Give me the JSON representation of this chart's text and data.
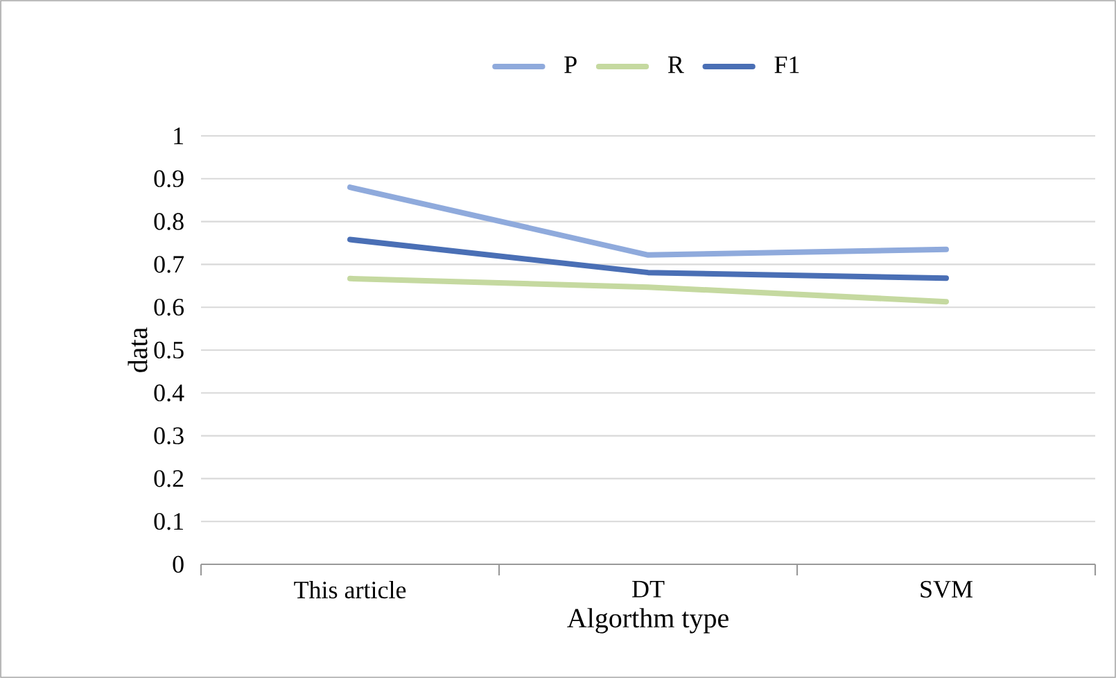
{
  "chart_data": {
    "type": "line",
    "xlabel": "Algorthm type",
    "ylabel": "data",
    "categories": [
      "This article",
      "DT",
      "SVM"
    ],
    "series": [
      {
        "name": "P",
        "color": "#8faadc",
        "values": [
          0.88,
          0.722,
          0.735
        ]
      },
      {
        "name": "R",
        "color": "#c5d9a0",
        "values": [
          0.667,
          0.647,
          0.613
        ]
      },
      {
        "name": "F1",
        "color": "#4a6fb5",
        "values": [
          0.758,
          0.681,
          0.668
        ]
      }
    ],
    "ylim": [
      0,
      1
    ],
    "yticks": [
      0,
      0.1,
      0.2,
      0.3,
      0.4,
      0.5,
      0.6,
      0.7,
      0.8,
      0.9,
      1
    ],
    "grid": "y",
    "legend": "top",
    "line_style": "solid"
  }
}
